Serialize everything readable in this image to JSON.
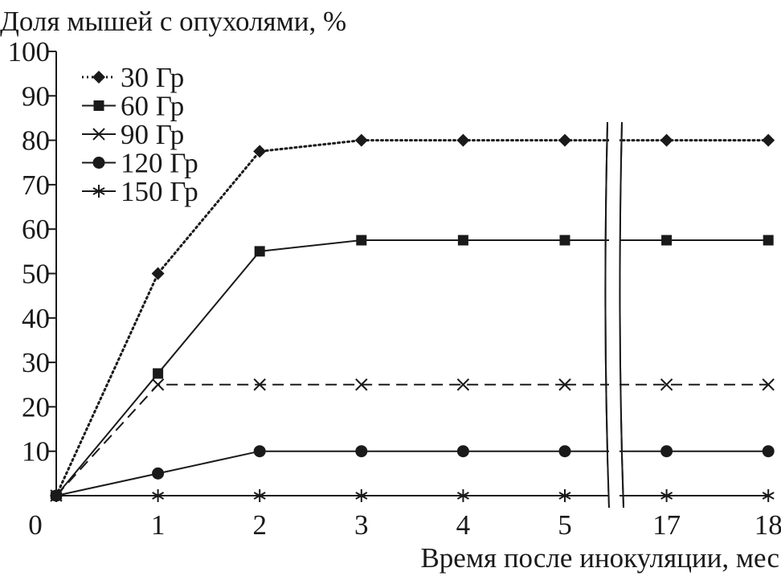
{
  "chart_data": {
    "type": "line",
    "title": "",
    "ylabel": "Доля мышей с опухолями, %",
    "xlabel": "Время после инокуляции, мес",
    "categories": [
      "0",
      "1",
      "2",
      "3",
      "4",
      "5",
      "17",
      "18"
    ],
    "x": [
      0,
      1,
      2,
      3,
      4,
      5,
      17,
      18
    ],
    "axis_break": "between 5 and 17",
    "ylim": [
      0,
      100
    ],
    "yticks": [
      "0",
      "10",
      "20",
      "30",
      "40",
      "50",
      "60",
      "70",
      "80",
      "90",
      "100"
    ],
    "grid": false,
    "legend": "top-left",
    "series": [
      {
        "name": "30 Гр",
        "marker": "diamond",
        "line": "dotted",
        "values": [
          0,
          50,
          77.5,
          80,
          80,
          80,
          80,
          80
        ]
      },
      {
        "name": "60 Гр",
        "marker": "square",
        "line": "solid",
        "values": [
          0,
          27.5,
          55,
          57.5,
          57.5,
          57.5,
          57.5,
          57.5
        ]
      },
      {
        "name": "90 Гр",
        "marker": "x",
        "line": "dashed",
        "values": [
          0,
          25,
          25,
          25,
          25,
          25,
          25,
          25
        ]
      },
      {
        "name": "120 Гр",
        "marker": "circle",
        "line": "solid",
        "values": [
          0,
          5,
          10,
          10,
          10,
          10,
          10,
          10
        ]
      },
      {
        "name": "150 Гр",
        "marker": "asterisk",
        "line": "solid",
        "values": [
          0,
          0,
          0,
          0,
          0,
          0,
          0,
          0
        ]
      }
    ],
    "color": "#1a1a1a"
  }
}
